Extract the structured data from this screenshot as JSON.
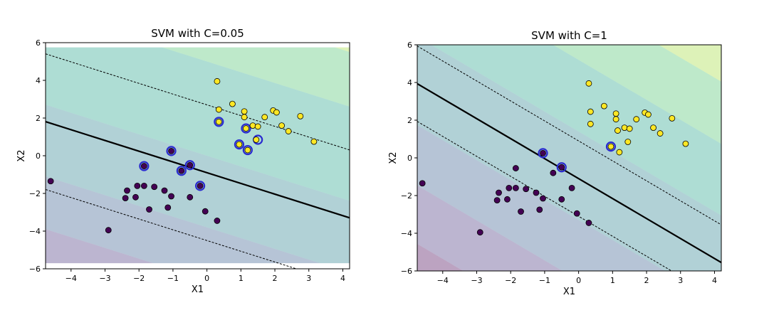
{
  "chart_data": [
    {
      "type": "scatter",
      "title": "SVM with C=0.05",
      "xlabel": "X1",
      "ylabel": "X2",
      "xlim": [
        -4.75,
        4.2
      ],
      "ylim": [
        -6,
        6
      ],
      "xticks": [
        -4,
        -3,
        -2,
        -1,
        0,
        1,
        2,
        3,
        4
      ],
      "yticks": [
        -6,
        -4,
        -2,
        0,
        2,
        4,
        6
      ],
      "shade_ylim": [
        -5.7,
        5.75
      ],
      "decision_boundary": {
        "slope": -0.57,
        "intercept": -0.9
      },
      "margin_offset": 3.6,
      "contour_offsets": [
        -8.7,
        -5.7,
        -2.9,
        0.9,
        5.9,
        8.8
      ],
      "support_vectors": [
        [
          -1.85,
          -0.55
        ],
        [
          -1.05,
          0.25
        ],
        [
          -0.75,
          -0.8
        ],
        [
          -0.5,
          -0.5
        ],
        [
          -0.2,
          -1.6
        ],
        [
          0.35,
          1.8
        ],
        [
          1.15,
          1.45
        ],
        [
          0.95,
          0.6
        ],
        [
          1.2,
          0.3
        ],
        [
          1.5,
          0.85
        ]
      ]
    },
    {
      "type": "scatter",
      "title": "SVM with C=1",
      "xlabel": "X1",
      "ylabel": "X2",
      "xlim": [
        -4.75,
        4.2
      ],
      "ylim": [
        -6,
        6
      ],
      "xticks": [
        -4,
        -3,
        -2,
        -1,
        0,
        1,
        2,
        3,
        4
      ],
      "yticks": [
        -6,
        -4,
        -2,
        0,
        2,
        4,
        6
      ],
      "shade_ylim": [
        -6,
        6
      ],
      "decision_boundary": {
        "slope": -1.06,
        "intercept": -1.1
      },
      "margin_offset": 2.0,
      "contour_offsets": [
        -8.5,
        -5.4,
        -2.2,
        2.5,
        6.3,
        9.6
      ],
      "support_vectors": [
        [
          -1.05,
          0.25
        ],
        [
          -0.5,
          -0.5
        ],
        [
          0.95,
          0.6
        ]
      ]
    }
  ],
  "points": {
    "class0": [
      [
        -4.6,
        -1.35
      ],
      [
        -2.9,
        -3.95
      ],
      [
        -2.35,
        -1.85
      ],
      [
        -2.4,
        -2.25
      ],
      [
        -2.05,
        -1.6
      ],
      [
        -1.85,
        -0.55
      ],
      [
        -1.85,
        -1.6
      ],
      [
        -2.1,
        -2.2
      ],
      [
        -1.7,
        -2.85
      ],
      [
        -1.55,
        -1.65
      ],
      [
        -1.25,
        -1.85
      ],
      [
        -1.05,
        -2.15
      ],
      [
        -1.15,
        -2.75
      ],
      [
        -1.05,
        0.25
      ],
      [
        -0.75,
        -0.8
      ],
      [
        -0.5,
        -0.5
      ],
      [
        -0.5,
        -2.2
      ],
      [
        -0.2,
        -1.6
      ],
      [
        -0.05,
        -2.95
      ],
      [
        0.3,
        -3.45
      ]
    ],
    "class1": [
      [
        0.3,
        3.95
      ],
      [
        0.35,
        2.45
      ],
      [
        0.35,
        1.8
      ],
      [
        0.75,
        2.75
      ],
      [
        0.95,
        0.6
      ],
      [
        1.1,
        2.35
      ],
      [
        1.1,
        2.05
      ],
      [
        1.15,
        1.45
      ],
      [
        1.2,
        0.3
      ],
      [
        1.35,
        1.6
      ],
      [
        1.45,
        0.85
      ],
      [
        1.5,
        1.55
      ],
      [
        1.7,
        2.05
      ],
      [
        1.95,
        2.4
      ],
      [
        2.05,
        2.3
      ],
      [
        2.2,
        1.6
      ],
      [
        2.4,
        1.3
      ],
      [
        2.75,
        2.1
      ],
      [
        3.15,
        0.75
      ]
    ]
  },
  "colors": {
    "class0": "#440154",
    "class1": "#fde725",
    "support_vector_ring": "#2a2acf",
    "shading": [
      "#440154",
      "#46327e",
      "#365c8d",
      "#277f8e",
      "#1fa187",
      "#4ac16d",
      "#a0da39",
      "#fde725"
    ]
  }
}
